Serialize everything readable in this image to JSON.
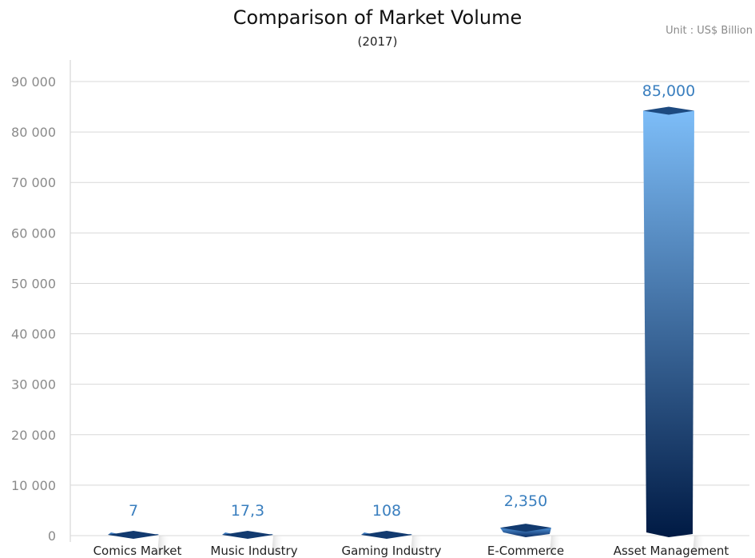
{
  "chart_data": {
    "type": "bar",
    "title": "Comparison of Market Volume",
    "subtitle": "(2017)",
    "unit_label": "Unit : US$ Billion",
    "categories": [
      "Comics Market",
      "Music Industry",
      "Gaming Industry",
      "E-Commerce",
      "Asset Management"
    ],
    "values": [
      7,
      17.3,
      108,
      2350,
      85000
    ],
    "value_labels": [
      "7",
      "17,3",
      "108",
      "2,350",
      "85,000"
    ],
    "ylim": [
      0,
      90000
    ],
    "yticks": [
      0,
      10000,
      20000,
      30000,
      40000,
      50000,
      60000,
      70000,
      80000,
      90000
    ],
    "ytick_labels": [
      "0",
      "10 000",
      "20 000",
      "30 000",
      "40 000",
      "50 000",
      "60 000",
      "70 000",
      "80 000",
      "90 000"
    ],
    "grid": true,
    "colors": {
      "bar_top": "#7dbdf8",
      "bar_bottom": "#001a44",
      "label": "#3a7fbf",
      "grid": "#d8d8d8",
      "tick": "#8a8a8a"
    }
  }
}
